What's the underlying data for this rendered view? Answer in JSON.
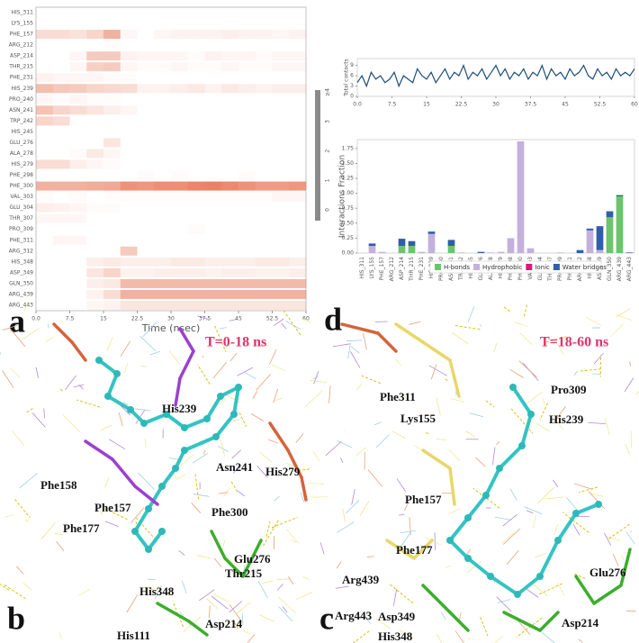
{
  "chart_data": [
    {
      "type": "heatmap",
      "panel": "a",
      "xlabel": "Time (nsec)",
      "rows": [
        "HIS_311",
        "LYS_155",
        "PHE_157",
        "ARG_212",
        "ASP_214",
        "THR_215",
        "PHE_231",
        "HIS_239",
        "PRO_240",
        "ASN_241",
        "TRP_242",
        "HIS_245",
        "GLU_276",
        "ALA_278",
        "HIS_279",
        "PHE_298",
        "PHE_300",
        "VAL_303",
        "GLU_304",
        "THR_307",
        "PRO_309",
        "PHE_311",
        "ARG_312",
        "HIS_348",
        "ASP_349",
        "GLN_350",
        "ARG_439",
        "ARG_443"
      ],
      "bins": [
        0,
        3.75,
        7.5,
        11.25,
        15,
        18.75,
        22.5,
        26.25,
        30,
        33.75,
        37.5,
        41.25,
        45,
        48.75,
        52.5,
        56.25,
        60
      ],
      "values": [
        [
          0,
          0,
          0,
          0,
          0,
          0,
          0,
          0,
          0,
          0,
          0,
          0,
          0,
          0,
          0,
          0
        ],
        [
          0,
          0,
          0,
          0,
          0,
          0,
          0,
          0,
          0,
          0,
          0,
          0,
          0,
          0,
          0,
          0
        ],
        [
          0.8,
          0.8,
          0.7,
          1,
          1.8,
          0.2,
          0,
          0.2,
          0.3,
          0.3,
          0.3,
          0.4,
          0.3,
          0.3,
          0.2,
          0.3
        ],
        [
          0,
          0,
          0,
          0,
          0.1,
          0,
          0,
          0,
          0,
          0,
          0,
          0,
          0,
          0,
          0,
          0
        ],
        [
          0,
          0,
          0.2,
          1.2,
          1.2,
          0.3,
          0.2,
          0.2,
          0.2,
          0.1,
          0.3,
          0.2,
          0.2,
          0.1,
          0.2,
          0.2
        ],
        [
          0,
          0,
          0.2,
          1.1,
          1.2,
          0.2,
          0.1,
          0.1,
          0.2,
          0.1,
          0.1,
          0.2,
          0.1,
          0.1,
          0.2,
          0.2
        ],
        [
          0.3,
          0.2,
          0.2,
          0.2,
          0.1,
          0.1,
          0,
          0,
          0,
          0,
          0,
          0,
          0,
          0,
          0,
          0
        ],
        [
          1.5,
          1.3,
          1.2,
          1,
          0.9,
          0.8,
          0.3,
          0.3,
          0.4,
          0.5,
          0.3,
          0.5,
          0.4,
          0.3,
          0.4,
          0.4
        ],
        [
          0.2,
          0.1,
          0.2,
          0.1,
          0.1,
          0,
          0,
          0,
          0,
          0,
          0,
          0,
          0,
          0,
          0,
          0
        ],
        [
          1.4,
          1,
          0.8,
          0.6,
          0.4,
          0.2,
          0,
          0,
          0,
          0,
          0,
          0,
          0,
          0,
          0,
          0
        ],
        [
          1,
          0.8,
          0,
          0,
          0,
          0,
          0,
          0,
          0,
          0,
          0,
          0,
          0,
          0,
          0,
          0
        ],
        [
          0,
          0,
          0,
          0,
          0,
          0,
          0,
          0,
          0,
          0,
          0,
          0,
          0,
          0,
          0,
          0
        ],
        [
          0,
          0,
          0,
          0,
          0.6,
          0,
          0,
          0,
          0,
          0,
          0,
          0,
          0,
          0,
          0,
          0
        ],
        [
          0,
          0,
          0.1,
          0.5,
          0.2,
          0,
          0,
          0,
          0,
          0,
          0,
          0,
          0,
          0,
          0,
          0
        ],
        [
          0.8,
          0.8,
          0.4,
          0.2,
          0.1,
          0,
          0,
          0,
          0,
          0,
          0,
          0,
          0,
          0,
          0,
          0
        ],
        [
          0,
          0,
          0,
          0,
          0,
          0,
          0.1,
          0,
          0.1,
          0,
          0,
          0,
          0.1,
          0,
          0,
          0
        ],
        [
          1.8,
          1.8,
          1.8,
          1.9,
          2,
          2.5,
          2.4,
          2.6,
          2.6,
          2.8,
          2.9,
          2.7,
          2.5,
          2.3,
          2.3,
          2.4
        ],
        [
          0.1,
          0,
          0.1,
          0,
          0.1,
          0.1,
          0.1,
          0.1,
          0.1,
          0.1,
          0.1,
          0.1,
          0.1,
          0.1,
          0.2,
          0.2
        ],
        [
          0.4,
          0.3,
          0.2,
          0.1,
          0.1,
          0,
          0,
          0,
          0,
          0,
          0,
          0,
          0,
          0,
          0,
          0
        ],
        [
          0.2,
          0.2,
          0.2,
          0,
          0,
          0,
          0,
          0,
          0,
          0,
          0,
          0,
          0,
          0,
          0,
          0
        ],
        [
          0,
          0,
          0,
          0,
          0,
          0,
          0,
          0,
          0,
          0.1,
          0,
          0,
          0,
          0,
          0,
          0
        ],
        [
          0,
          0.2,
          0.2,
          0,
          0,
          0,
          0,
          0,
          0,
          0,
          0,
          0,
          0,
          0,
          0,
          0
        ],
        [
          0,
          0,
          0,
          0,
          0,
          1.2,
          0,
          0,
          0,
          0,
          0,
          0,
          0,
          0,
          0,
          0
        ],
        [
          0,
          0,
          0,
          0.4,
          0.5,
          0.4,
          0.4,
          0.4,
          0.5,
          0.5,
          0.4,
          0.4,
          0.4,
          0.5,
          0.5,
          0.4
        ],
        [
          0,
          0,
          0,
          0.6,
          1,
          0.3,
          0.3,
          0.4,
          0.4,
          0.4,
          0.3,
          0.4,
          0.4,
          0.3,
          0.3,
          0.4
        ],
        [
          0,
          0,
          0,
          0.4,
          0.5,
          1.6,
          1.6,
          1.6,
          1.6,
          1.6,
          1.6,
          1.6,
          1.6,
          1.6,
          1.6,
          1.6
        ],
        [
          0,
          0,
          0,
          0.3,
          0.8,
          1.8,
          1.8,
          1.8,
          1.8,
          1.8,
          1.8,
          1.8,
          1.8,
          1.8,
          1.8,
          1.8
        ],
        [
          0,
          0,
          0,
          0.2,
          0.3,
          0.6,
          0.6,
          0.6,
          0.6,
          0.6,
          0.6,
          0.6,
          0.6,
          0.6,
          0.6,
          0.6
        ]
      ],
      "xlim": [
        0,
        60
      ],
      "xticks": [
        {
          "value": 0,
          "label": "0.0"
        },
        7.5,
        15,
        22.5,
        30,
        37.5,
        45,
        52.5,
        60
      ],
      "colorbar": {
        "lim": [
          0,
          4
        ],
        "ticks": [
          0,
          1,
          2,
          3,
          {
            "value": 4,
            "label": "≥4"
          }
        ],
        "colors": [
          "#ffffff",
          "#e2522a"
        ]
      }
    },
    {
      "type": "line",
      "ylabel": "Total contacts",
      "color": "#1f4e79",
      "x": [
        0,
        1,
        2,
        3,
        4,
        5,
        6,
        7,
        8,
        9,
        10,
        11,
        12,
        13,
        14,
        15,
        16,
        17,
        18,
        19,
        20,
        21,
        22,
        23,
        24,
        25,
        26,
        27,
        28,
        29,
        30,
        31,
        32,
        33,
        34,
        35,
        36,
        37,
        38,
        39,
        40,
        41,
        42,
        43,
        44,
        45,
        46,
        47,
        48,
        49,
        50,
        51,
        52,
        53,
        54,
        55,
        56,
        57,
        58,
        59,
        60
      ],
      "values": [
        4,
        6,
        3,
        7,
        5,
        6,
        4,
        5,
        7,
        3,
        6,
        5,
        4,
        8,
        6,
        5,
        7,
        4,
        6,
        8,
        5,
        7,
        6,
        9,
        5,
        7,
        6,
        8,
        5,
        7,
        9,
        6,
        8,
        5,
        7,
        6,
        8,
        5,
        7,
        6,
        9,
        5,
        8,
        6,
        7,
        5,
        8,
        6,
        7,
        9,
        6,
        5,
        8,
        6,
        7,
        5,
        8,
        6,
        7,
        6,
        8
      ],
      "xlim": [
        0,
        60
      ],
      "ylim": [
        0,
        11
      ],
      "xticks": [
        {
          "value": 0,
          "label": "0.0"
        },
        7.5,
        15,
        22.5,
        30,
        37.5,
        45,
        52.5,
        60
      ],
      "yticks": [
        0,
        3,
        6,
        9
      ]
    },
    {
      "type": "stacked-bar",
      "ylabel": "Interactions Fraction",
      "categories": [
        "HIS_311",
        "LYS_155",
        "PHE_157",
        "ARG_212",
        "ASP_214",
        "THR_215",
        "PHE_231",
        "HIS_239",
        "PRO_240",
        "ASN_241",
        "TRP_242",
        "HIS_245",
        "GLU_276",
        "ALA_278",
        "HIS_279",
        "PHE_298",
        "PHE_300",
        "VAL_303",
        "GLU_304",
        "THR_307",
        "PRO_309",
        "PHE_311",
        "ARG_312",
        "HIS_348",
        "ASP_349",
        "GLN_350",
        "ARG_439",
        "ARG_443"
      ],
      "series": [
        {
          "name": "H-bonds",
          "color": "#6cc46c",
          "values": [
            0,
            0,
            0,
            0,
            0.12,
            0.12,
            0,
            0,
            0,
            0.12,
            0,
            0,
            0,
            0,
            0,
            0,
            0,
            0,
            0,
            0,
            0,
            0,
            0,
            0,
            0,
            0.6,
            0.95,
            0
          ]
        },
        {
          "name": "Hydrophobic",
          "color": "#c4b0dc",
          "values": [
            0,
            0.12,
            0.02,
            0,
            0,
            0,
            0.02,
            0.32,
            0,
            0,
            0.01,
            0,
            0,
            0.01,
            0.02,
            0.25,
            1.87,
            0.08,
            0,
            0,
            0.01,
            0,
            0,
            0.38,
            0.05,
            0,
            0,
            0
          ]
        },
        {
          "name": "Ionic",
          "color": "#e0177a",
          "values": [
            0,
            0,
            0,
            0,
            0,
            0,
            0,
            0,
            0,
            0,
            0,
            0,
            0,
            0,
            0,
            0,
            0,
            0,
            0,
            0,
            0,
            0,
            0,
            0,
            0,
            0,
            0,
            0
          ]
        },
        {
          "name": "Water bridges",
          "color": "#2f5fa8",
          "values": [
            0,
            0.04,
            0,
            0,
            0.12,
            0.08,
            0,
            0.04,
            0,
            0.1,
            0,
            0,
            0.02,
            0,
            0,
            0,
            0,
            0,
            0,
            0,
            0,
            0,
            0.05,
            0.03,
            0.4,
            0.1,
            0.02,
            0.01
          ]
        }
      ],
      "ylim": [
        0,
        1.9
      ],
      "yticks": [
        {
          "value": 0,
          "label": "0.00"
        },
        {
          "value": 0.25,
          "label": "0.25"
        },
        {
          "value": 0.5,
          "label": "0.50"
        },
        {
          "value": 0.75,
          "label": "0.75"
        },
        {
          "value": 1,
          "label": "1.00"
        },
        {
          "value": 1.25,
          "label": "1.25"
        },
        {
          "value": 1.5,
          "label": "1.50"
        },
        {
          "value": 1.75,
          "label": "1.75"
        }
      ]
    }
  ],
  "panels": {
    "b": {
      "label": "b",
      "time": "T=0-18 ns",
      "residues": [
        "His239",
        "His279",
        "Asn241",
        "Phe158",
        "Phe157",
        "Phe177",
        "Phe300",
        "Thr215",
        "Glu276",
        "His348",
        "His111",
        "Asp214"
      ]
    },
    "d": {
      "label": "d",
      "time": "T=18-60 ns",
      "residues": [
        "Phe311",
        "Lys155",
        "Pro309",
        "His239",
        "Phe157",
        "Phe177",
        "Arg439",
        "Glu276",
        "Arg443",
        "Asp349",
        "His348",
        "Asp214"
      ]
    },
    "c": {
      "label": "c"
    }
  }
}
